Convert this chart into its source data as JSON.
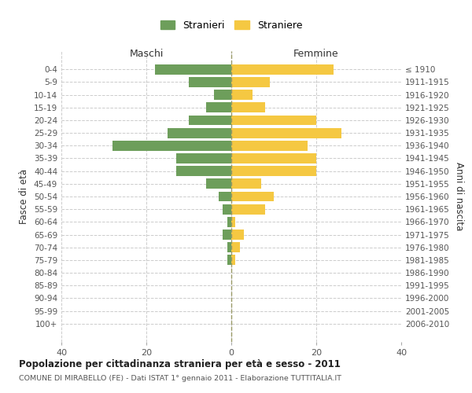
{
  "age_groups": [
    "0-4",
    "5-9",
    "10-14",
    "15-19",
    "20-24",
    "25-29",
    "30-34",
    "35-39",
    "40-44",
    "45-49",
    "50-54",
    "55-59",
    "60-64",
    "65-69",
    "70-74",
    "75-79",
    "80-84",
    "85-89",
    "90-94",
    "95-99",
    "100+"
  ],
  "birth_years": [
    "2006-2010",
    "2001-2005",
    "1996-2000",
    "1991-1995",
    "1986-1990",
    "1981-1985",
    "1976-1980",
    "1971-1975",
    "1966-1970",
    "1961-1965",
    "1956-1960",
    "1951-1955",
    "1946-1950",
    "1941-1945",
    "1936-1940",
    "1931-1935",
    "1926-1930",
    "1921-1925",
    "1916-1920",
    "1911-1915",
    "≤ 1910"
  ],
  "maschi": [
    18,
    10,
    4,
    6,
    10,
    15,
    28,
    13,
    13,
    6,
    3,
    2,
    1,
    2,
    1,
    1,
    0,
    0,
    0,
    0,
    0
  ],
  "femmine": [
    24,
    9,
    5,
    8,
    20,
    26,
    18,
    20,
    20,
    7,
    10,
    8,
    1,
    3,
    2,
    1,
    0,
    0,
    0,
    0,
    0
  ],
  "maschi_color": "#6d9e5b",
  "femmine_color": "#f5c842",
  "title": "Popolazione per cittadinanza straniera per età e sesso - 2011",
  "subtitle": "COMUNE DI MIRABELLO (FE) - Dati ISTAT 1° gennaio 2011 - Elaborazione TUTTITALIA.IT",
  "xlabel_maschi": "Maschi",
  "xlabel_femmine": "Femmine",
  "ylabel_left": "Fasce di età",
  "ylabel_right": "Anni di nascita",
  "legend_maschi": "Stranieri",
  "legend_femmine": "Straniere",
  "xlim": 40,
  "background_color": "#ffffff",
  "grid_color": "#cccccc",
  "bar_height": 0.8
}
